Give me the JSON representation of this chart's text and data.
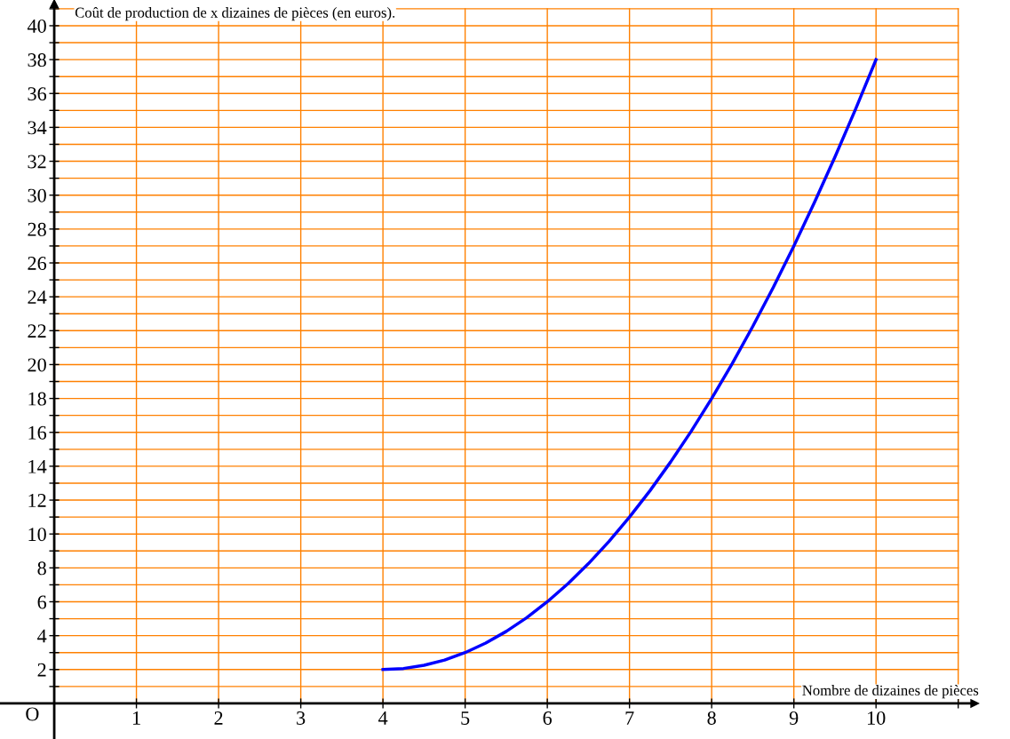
{
  "chart_data": {
    "type": "line",
    "title": "Coût de production de x dizaines de pièces (en euros).",
    "xlabel": "Nombre de dizaines de pièces",
    "annotations": [
      "O"
    ],
    "x": [
      4,
      4.25,
      4.5,
      4.75,
      5,
      5.25,
      5.5,
      5.75,
      6,
      6.25,
      6.5,
      6.75,
      7,
      7.25,
      7.5,
      7.75,
      8,
      8.25,
      8.5,
      8.75,
      9,
      9.25,
      9.5,
      9.75,
      10
    ],
    "series": [
      {
        "color": "#0000ff",
        "values": [
          2,
          2.06,
          2.25,
          2.56,
          3,
          3.56,
          4.25,
          5.06,
          6,
          7.06,
          8.25,
          9.56,
          11,
          12.56,
          14.25,
          16.06,
          18,
          20.06,
          22.25,
          24.56,
          27,
          29.56,
          32.25,
          35.06,
          38
        ]
      }
    ],
    "xlim": [
      -0.66,
      11.2
    ],
    "ylim": [
      -2.1,
      41.3
    ],
    "xticks": [
      1,
      2,
      3,
      4,
      5,
      6,
      7,
      8,
      9,
      10,
      {
        "value": 11,
        "label": null
      }
    ],
    "yticks": [
      {
        "value": 1,
        "label": null
      },
      2,
      {
        "value": 3,
        "label": null
      },
      4,
      {
        "value": 5,
        "label": null
      },
      6,
      {
        "value": 7,
        "label": null
      },
      8,
      {
        "value": 9,
        "label": null
      },
      10,
      {
        "value": 11,
        "label": null
      },
      12,
      {
        "value": 13,
        "label": null
      },
      14,
      {
        "value": 15,
        "label": null
      },
      16,
      {
        "value": 17,
        "label": null
      },
      18,
      {
        "value": 19,
        "label": null
      },
      20,
      {
        "value": 21,
        "label": null
      },
      22,
      {
        "value": 23,
        "label": null
      },
      24,
      {
        "value": 25,
        "label": null
      },
      26,
      {
        "value": 27,
        "label": null
      },
      28,
      {
        "value": 29,
        "label": null
      },
      30,
      {
        "value": 31,
        "label": null
      },
      32,
      {
        "value": 33,
        "label": null
      },
      34,
      {
        "value": 35,
        "label": null
      },
      36,
      {
        "value": 37,
        "label": null
      },
      38,
      {
        "value": 39,
        "label": null
      },
      40,
      {
        "value": 41,
        "label": null
      }
    ],
    "grid": true,
    "marker": "none",
    "line_style": "solid"
  }
}
